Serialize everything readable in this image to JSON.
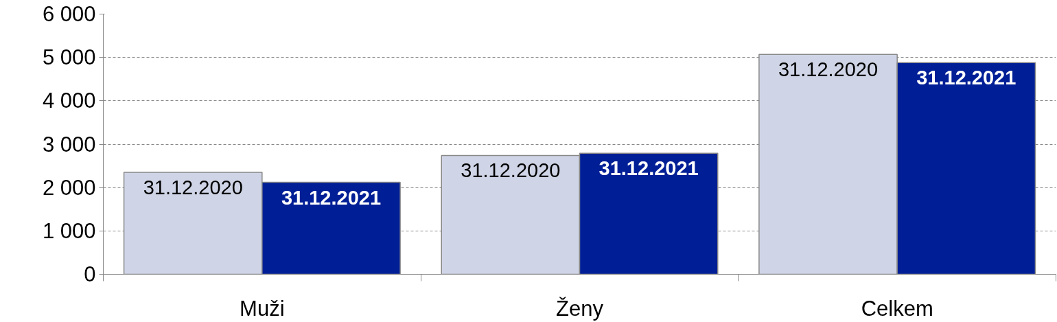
{
  "chart_data": {
    "type": "bar",
    "categories": [
      "Muži",
      "Ženy",
      "Celkem"
    ],
    "series": [
      {
        "name": "31.12.2020",
        "color": "#cfd5e6",
        "values": [
          2350,
          2740,
          5070
        ]
      },
      {
        "name": "31.12.2021",
        "color": "#001f96",
        "values": [
          2120,
          2790,
          4880
        ]
      }
    ],
    "ylim": [
      0,
      6000
    ],
    "yticks": [
      0,
      {
        "value": 1000,
        "label": "1 000"
      },
      {
        "value": 2000,
        "label": "2 000"
      },
      {
        "value": 3000,
        "label": "3 000"
      },
      {
        "value": 4000,
        "label": "4 000"
      },
      {
        "value": 5000,
        "label": "5 000"
      },
      {
        "value": 6000,
        "label": "6 000"
      }
    ],
    "grid": "y",
    "legend": false
  }
}
